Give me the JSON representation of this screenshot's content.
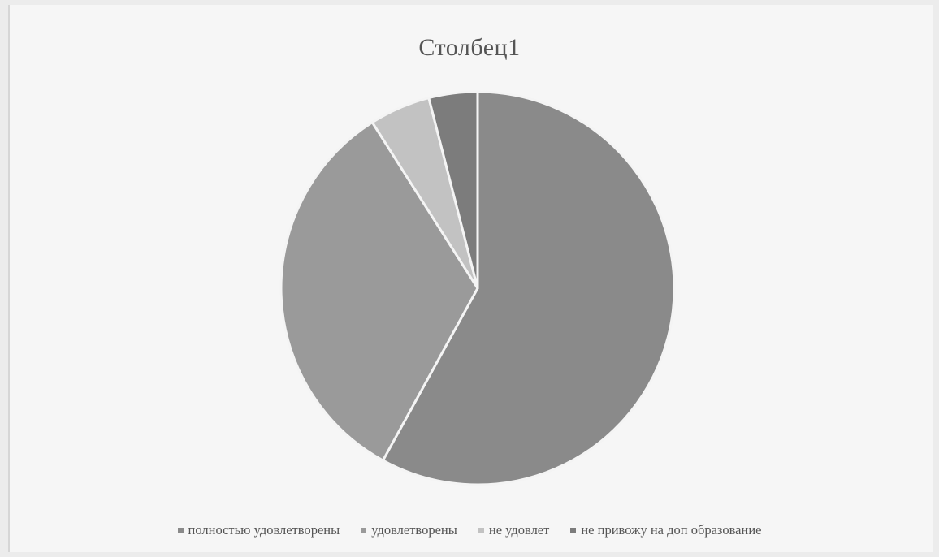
{
  "chart_data": {
    "type": "pie",
    "title": "Столбец1",
    "legend_position": "bottom",
    "categories": [
      "полностью удовлетворены",
      "удовлетворены",
      "не удовлет",
      "не привожу на доп образование"
    ],
    "values": [
      58,
      33,
      5,
      4
    ],
    "colors": [
      "#8a8a8a",
      "#9a9a9a",
      "#c2c2c2",
      "#7c7c7c"
    ],
    "slice_border_color": "#f4f4f4"
  }
}
